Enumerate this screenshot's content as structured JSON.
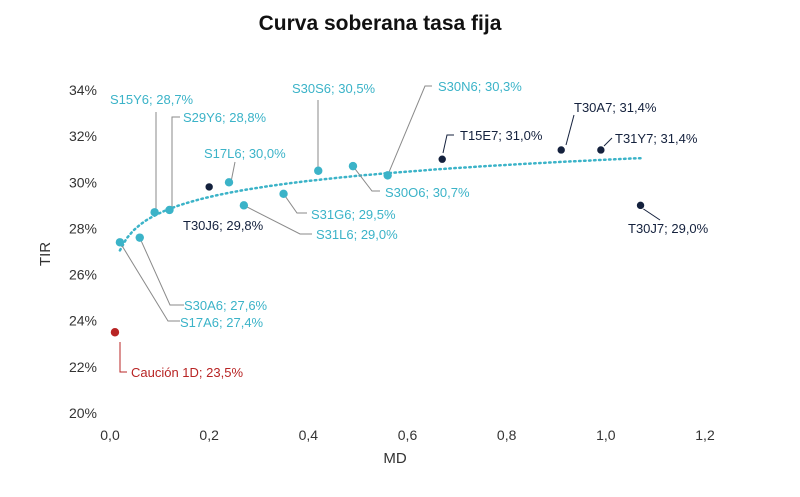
{
  "chart_data": {
    "type": "scatter",
    "title": "Curva soberana tasa fija",
    "xlabel": "MD",
    "ylabel": "TIR",
    "xlim": [
      0,
      1.2
    ],
    "ylim": [
      20,
      34
    ],
    "x_ticks": [
      "0,0",
      "0,2",
      "0,4",
      "0,6",
      "0,8",
      "1,0",
      "1,2"
    ],
    "y_ticks": [
      "20%",
      "22%",
      "24%",
      "26%",
      "28%",
      "30%",
      "32%",
      "34%"
    ],
    "grid": false,
    "colors": {
      "light": "#3bb3c8",
      "dark": "#14213d",
      "red": "#b82424",
      "trend": "#3bb3c8"
    },
    "series": [
      {
        "name": "light",
        "points": [
          {
            "x": 0.02,
            "y": 27.4,
            "label": "S17A6; 27,4%"
          },
          {
            "x": 0.06,
            "y": 27.6,
            "label": "S30A6; 27,6%"
          },
          {
            "x": 0.09,
            "y": 28.7,
            "label": "S15Y6; 28,7%"
          },
          {
            "x": 0.12,
            "y": 28.8,
            "label": "S29Y6; 28,8%"
          },
          {
            "x": 0.24,
            "y": 30.0,
            "label": "S17L6; 30,0%"
          },
          {
            "x": 0.27,
            "y": 29.0,
            "label": "S31L6; 29,0%"
          },
          {
            "x": 0.35,
            "y": 29.5,
            "label": "S31G6; 29,5%"
          },
          {
            "x": 0.42,
            "y": 30.5,
            "label": "S30S6; 30,5%"
          },
          {
            "x": 0.49,
            "y": 30.7,
            "label": "S30O6; 30,7%"
          },
          {
            "x": 0.56,
            "y": 30.3,
            "label": "S30N6; 30,3%"
          }
        ]
      },
      {
        "name": "dark",
        "points": [
          {
            "x": 0.2,
            "y": 29.8,
            "label": "T30J6; 29,8%"
          },
          {
            "x": 0.67,
            "y": 31.0,
            "label": "T15E7; 31,0%"
          },
          {
            "x": 0.91,
            "y": 31.4,
            "label": "T30A7; 31,4%"
          },
          {
            "x": 0.99,
            "y": 31.4,
            "label": "T31Y7; 31,4%"
          },
          {
            "x": 1.07,
            "y": 29.0,
            "label": "T30J7; 29,0%"
          }
        ]
      },
      {
        "name": "red",
        "points": [
          {
            "x": 0.01,
            "y": 23.5,
            "label": "Caución 1D; 23,5%"
          }
        ]
      }
    ],
    "trendline": {
      "type": "logarithmic",
      "x_start": 0.02,
      "x_end": 1.07
    }
  }
}
